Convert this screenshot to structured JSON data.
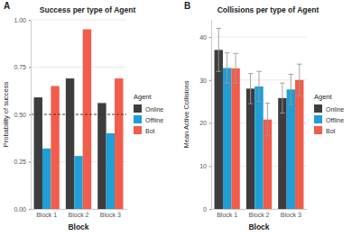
{
  "chart_data": [
    {
      "type": "bar",
      "annotations": [
        "A"
      ],
      "title": "Success per type of Agent",
      "x_label": "Block",
      "y_label": "Probability of success",
      "categories": [
        "Block 1",
        "Block 2",
        "Block 3"
      ],
      "series": [
        {
          "name": "Online",
          "color": "#3d3d3d",
          "values": [
            0.59,
            0.69,
            0.56
          ]
        },
        {
          "name": "Offline",
          "color": "#1f9fd5",
          "values": [
            0.32,
            0.28,
            0.4
          ]
        },
        {
          "name": "Bot",
          "color": "#f25c4a",
          "values": [
            0.65,
            0.95,
            0.69
          ]
        }
      ],
      "reference_line": 0.5,
      "ylim": [
        0,
        1.0
      ],
      "yticks": [
        {
          "value": 0,
          "label": "0.00"
        },
        {
          "value": 0.25,
          "label": "0.25"
        },
        {
          "value": 0.5,
          "label": "0.50"
        },
        {
          "value": 0.75,
          "label": "0.75"
        },
        {
          "value": 1.0,
          "label": "1.00"
        }
      ],
      "grid": true,
      "legend": "right",
      "legend_title": "Agent"
    },
    {
      "type": "bar",
      "annotations": [
        "B"
      ],
      "title": "Collisions per type of Agent",
      "x_label": "Block",
      "y_label": "Mean Active Collisions",
      "categories": [
        "Block 1",
        "Block 2",
        "Block 3"
      ],
      "series": [
        {
          "name": "Online",
          "color": "#3d3d3d",
          "values": [
            37,
            28,
            25.8
          ],
          "errors": [
            5,
            3.5,
            3.5
          ]
        },
        {
          "name": "Offline",
          "color": "#1f9fd5",
          "values": [
            32.8,
            28.5,
            27.8
          ],
          "errors": [
            3.5,
            3.5,
            3.5
          ]
        },
        {
          "name": "Bot",
          "color": "#f25c4a",
          "values": [
            32.7,
            20.8,
            30
          ],
          "errors": [
            3.5,
            3.8,
            3.7
          ]
        }
      ],
      "ylim": [
        0,
        44
      ],
      "yticks": [
        0,
        10,
        20,
        30,
        40
      ],
      "grid": true,
      "legend": "right",
      "legend_title": "Agent"
    }
  ]
}
